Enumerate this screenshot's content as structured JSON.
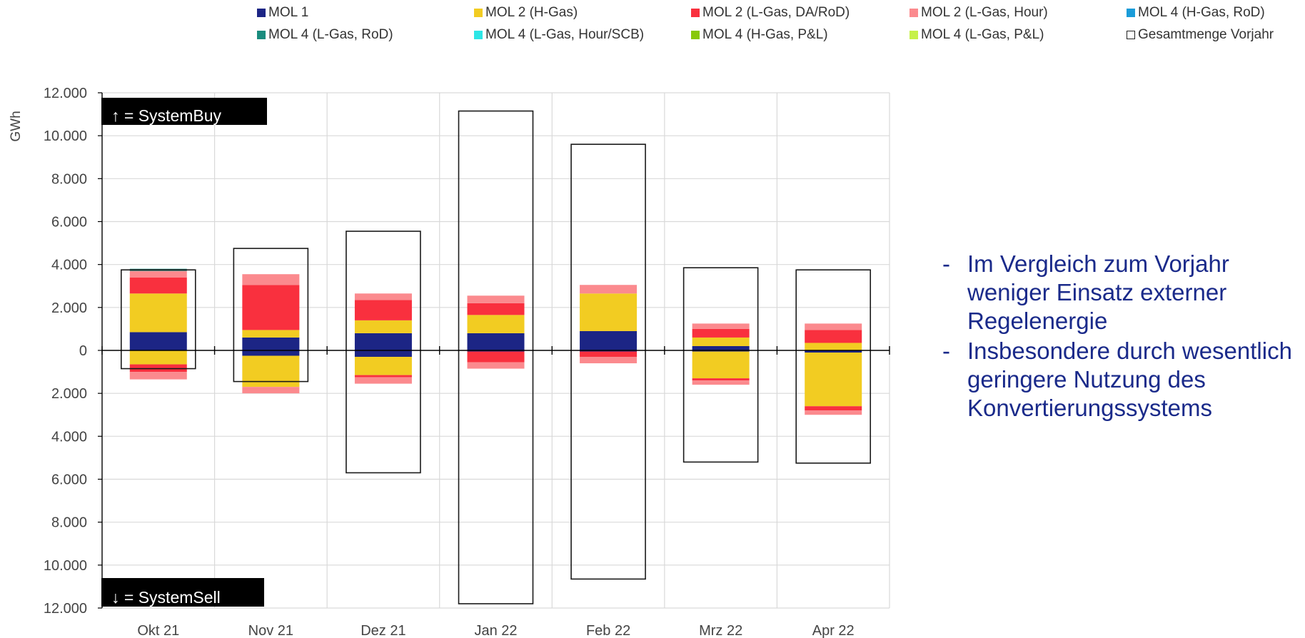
{
  "chart_data": {
    "type": "bar",
    "stacked": true,
    "ylabel": "GWh",
    "ylim": [
      -12000,
      12000
    ],
    "y_ticks": [
      12000,
      10000,
      8000,
      6000,
      4000,
      2000,
      0,
      -2000,
      -4000,
      -6000,
      -8000,
      -10000,
      -12000
    ],
    "y_tick_labels": [
      "12.000",
      "10.000",
      "8.000",
      "6.000",
      "4.000",
      "2.000",
      "0",
      "2.000",
      "4.000",
      "6.000",
      "8.000",
      "10.000",
      "12.000"
    ],
    "grid": true,
    "legend_position": "top",
    "categories": [
      "Okt 21",
      "Nov 21",
      "Dez 21",
      "Jan 22",
      "Feb 22",
      "Mrz 22",
      "Apr 22"
    ],
    "series": [
      {
        "name": "MOL 1",
        "color": "#1c2585",
        "positive": [
          850,
          600,
          800,
          800,
          900,
          200,
          0
        ],
        "negative": [
          0,
          -250,
          -300,
          -50,
          -50,
          -50,
          -100
        ]
      },
      {
        "name": "MOL 2 (H-Gas)",
        "color": "#f2cc22",
        "positive": [
          1800,
          350,
          600,
          850,
          1750,
          400,
          350
        ],
        "negative": [
          -650,
          -1450,
          -850,
          0,
          0,
          -1250,
          -2500
        ]
      },
      {
        "name": "MOL 2 (L-Gas, DA/RoD)",
        "color": "#f9303e",
        "positive": [
          750,
          2100,
          950,
          550,
          0,
          400,
          600
        ],
        "negative": [
          -350,
          0,
          -100,
          -500,
          -250,
          -100,
          -200
        ]
      },
      {
        "name": "MOL 2 (L-Gas, Hour)",
        "color": "#fb8a8e",
        "positive": [
          300,
          500,
          300,
          350,
          400,
          250,
          300
        ],
        "negative": [
          -350,
          -300,
          -300,
          -300,
          -300,
          -200,
          -200
        ]
      },
      {
        "name": "MOL 4 (H-Gas, RoD)",
        "color": "#1a9cd9",
        "positive": [
          0,
          0,
          0,
          0,
          0,
          0,
          0
        ],
        "negative": [
          0,
          0,
          0,
          0,
          0,
          0,
          0
        ]
      },
      {
        "name": "MOL 4 (L-Gas, RoD)",
        "color": "#1a8c7e",
        "positive": [
          100,
          0,
          0,
          0,
          0,
          0,
          0
        ],
        "negative": [
          0,
          0,
          0,
          0,
          0,
          0,
          0
        ]
      },
      {
        "name": "MOL 4 (L-Gas, Hour/SCB)",
        "color": "#2de6e6",
        "positive": [
          0,
          0,
          0,
          0,
          0,
          0,
          0
        ],
        "negative": [
          0,
          0,
          0,
          0,
          0,
          0,
          0
        ]
      },
      {
        "name": "MOL 4 (H-Gas, P&L)",
        "color": "#88c80a",
        "positive": [
          0,
          0,
          0,
          0,
          0,
          0,
          0
        ],
        "negative": [
          0,
          0,
          0,
          0,
          0,
          0,
          0
        ]
      },
      {
        "name": "MOL 4 (L-Gas, P&L)",
        "color": "#c6f14a",
        "positive": [
          0,
          0,
          0,
          0,
          0,
          0,
          0
        ],
        "negative": [
          0,
          0,
          0,
          0,
          0,
          0,
          0
        ]
      }
    ],
    "previous_year_total": {
      "name": "Gesamtmenge Vorjahr",
      "positive": [
        3750,
        4750,
        5550,
        11150,
        9600,
        3850,
        3750
      ],
      "negative": [
        -850,
        -1450,
        -5700,
        -11800,
        -10650,
        -5200,
        -5250
      ]
    },
    "annotations": {
      "system_buy": "↑ = SystemBuy",
      "system_sell": "↓ = SystemSell"
    }
  },
  "bullets": [
    "Im Vergleich zum Vorjahr weniger Einsatz externer Regelenergie",
    "Insbesondere durch wesentlich geringere Nutzung des Konvertierungssystems"
  ],
  "bullet_dash": "-"
}
